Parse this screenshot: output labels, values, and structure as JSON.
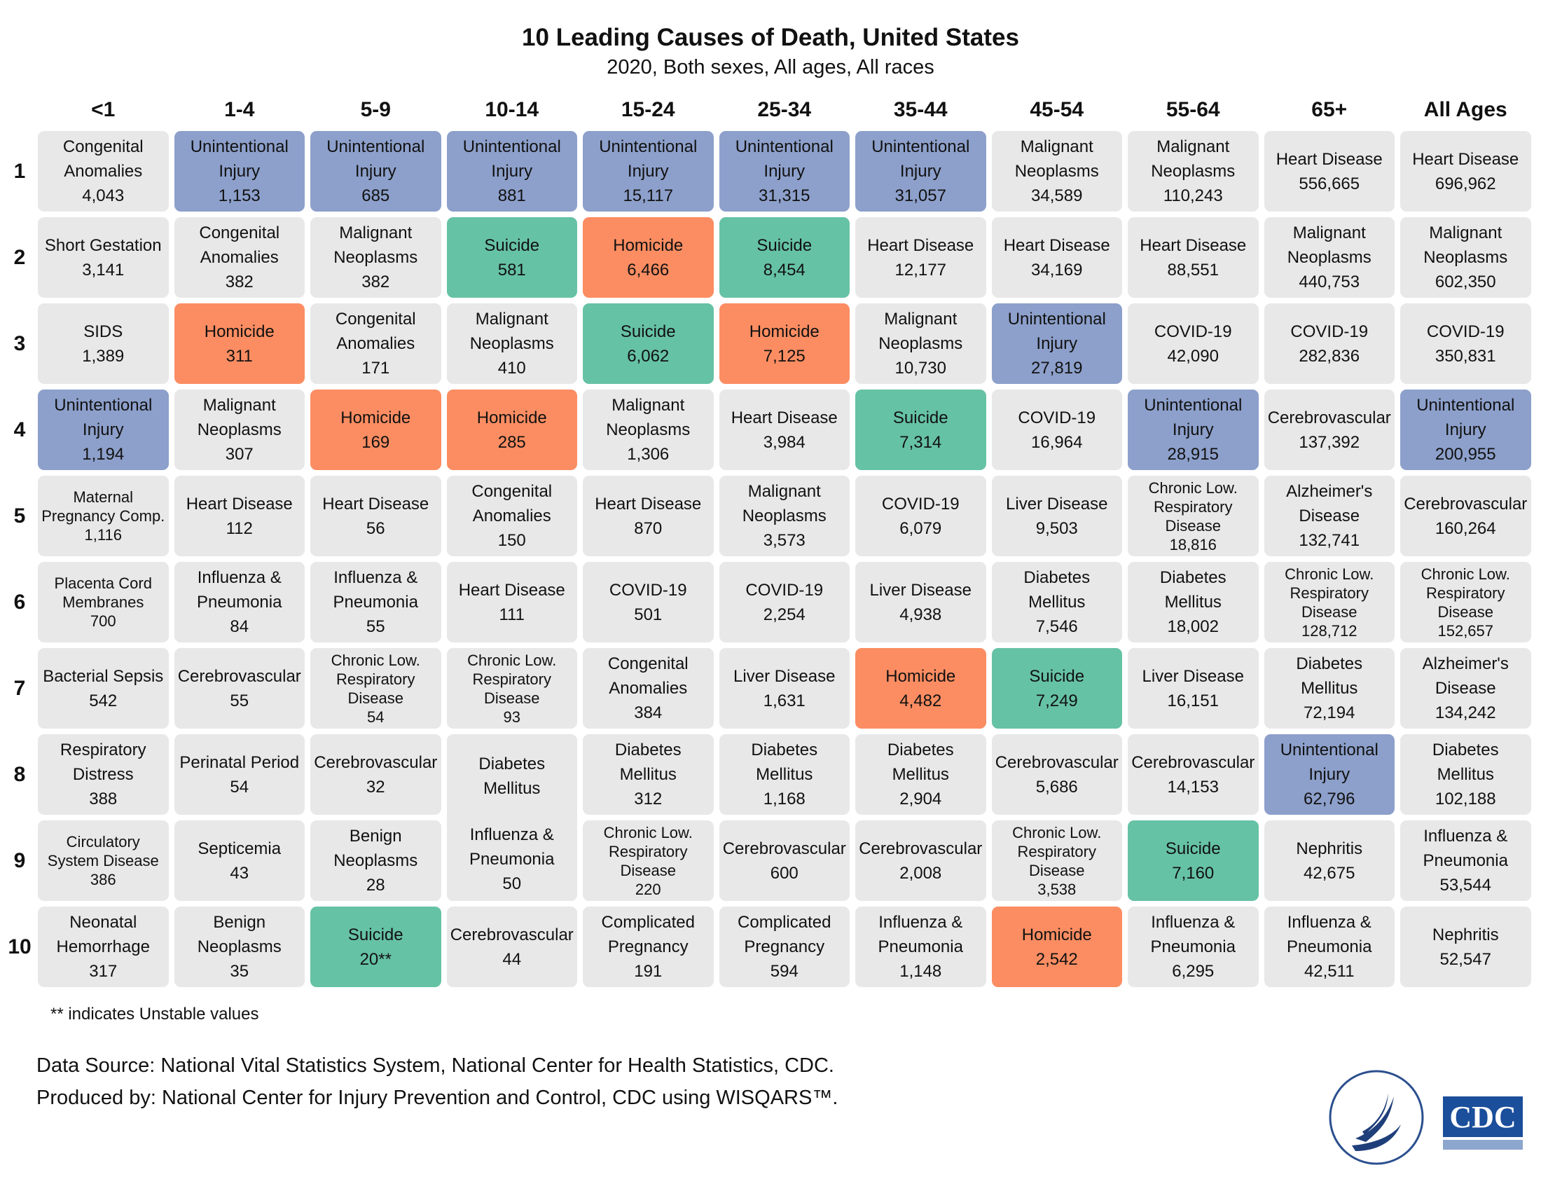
{
  "title": "10 Leading Causes of Death, United States",
  "subtitle": "2020, Both sexes, All ages, All races",
  "table": {
    "columns": [
      "<1",
      "1-4",
      "5-9",
      "10-14",
      "15-24",
      "25-34",
      "35-44",
      "45-54",
      "55-64",
      "65+",
      "All Ages"
    ],
    "rows": [
      {
        "rank": 1,
        "cells": [
          {
            "cause": "Congenital Anomalies",
            "count": "4,043"
          },
          {
            "cause": "Unintentional Injury",
            "count": "1,153",
            "color": "#8da0cb"
          },
          {
            "cause": "Unintentional Injury",
            "count": "685",
            "color": "#8da0cb"
          },
          {
            "cause": "Unintentional Injury",
            "count": "881",
            "color": "#8da0cb"
          },
          {
            "cause": "Unintentional Injury",
            "count": "15,117",
            "color": "#8da0cb"
          },
          {
            "cause": "Unintentional Injury",
            "count": "31,315",
            "color": "#8da0cb"
          },
          {
            "cause": "Unintentional Injury",
            "count": "31,057",
            "color": "#8da0cb"
          },
          {
            "cause": "Malignant Neoplasms",
            "count": "34,589"
          },
          {
            "cause": "Malignant Neoplasms",
            "count": "110,243"
          },
          {
            "cause": "Heart Disease",
            "count": "556,665"
          },
          {
            "cause": "Heart Disease",
            "count": "696,962"
          }
        ]
      },
      {
        "rank": 2,
        "cells": [
          {
            "cause": "Short Gestation",
            "count": "3,141"
          },
          {
            "cause": "Congenital Anomalies",
            "count": "382"
          },
          {
            "cause": "Malignant Neoplasms",
            "count": "382"
          },
          {
            "cause": "Suicide",
            "count": "581",
            "color": "#66c2a5"
          },
          {
            "cause": "Homicide",
            "count": "6,466",
            "color": "#fc8d62"
          },
          {
            "cause": "Suicide",
            "count": "8,454",
            "color": "#66c2a5"
          },
          {
            "cause": "Heart Disease",
            "count": "12,177"
          },
          {
            "cause": "Heart Disease",
            "count": "34,169"
          },
          {
            "cause": "Heart Disease",
            "count": "88,551"
          },
          {
            "cause": "Malignant Neoplasms",
            "count": "440,753"
          },
          {
            "cause": "Malignant Neoplasms",
            "count": "602,350"
          }
        ]
      },
      {
        "rank": 3,
        "cells": [
          {
            "cause": "SIDS",
            "count": "1,389"
          },
          {
            "cause": "Homicide",
            "count": "311",
            "color": "#fc8d62"
          },
          {
            "cause": "Congenital Anomalies",
            "count": "171"
          },
          {
            "cause": "Malignant Neoplasms",
            "count": "410"
          },
          {
            "cause": "Suicide",
            "count": "6,062",
            "color": "#66c2a5"
          },
          {
            "cause": "Homicide",
            "count": "7,125",
            "color": "#fc8d62"
          },
          {
            "cause": "Malignant Neoplasms",
            "count": "10,730"
          },
          {
            "cause": "Unintentional Injury",
            "count": "27,819",
            "color": "#8da0cb"
          },
          {
            "cause": "COVID-19",
            "count": "42,090"
          },
          {
            "cause": "COVID-19",
            "count": "282,836"
          },
          {
            "cause": "COVID-19",
            "count": "350,831"
          }
        ]
      },
      {
        "rank": 4,
        "cells": [
          {
            "cause": "Unintentional Injury",
            "count": "1,194",
            "color": "#8da0cb"
          },
          {
            "cause": "Malignant Neoplasms",
            "count": "307"
          },
          {
            "cause": "Homicide",
            "count": "169",
            "color": "#fc8d62"
          },
          {
            "cause": "Homicide",
            "count": "285",
            "color": "#fc8d62"
          },
          {
            "cause": "Malignant Neoplasms",
            "count": "1,306"
          },
          {
            "cause": "Heart Disease",
            "count": "3,984"
          },
          {
            "cause": "Suicide",
            "count": "7,314",
            "color": "#66c2a5"
          },
          {
            "cause": "COVID-19",
            "count": "16,964"
          },
          {
            "cause": "Unintentional Injury",
            "count": "28,915",
            "color": "#8da0cb"
          },
          {
            "cause": "Cerebrovascular",
            "count": "137,392"
          },
          {
            "cause": "Unintentional Injury",
            "count": "200,955",
            "color": "#8da0cb"
          }
        ]
      },
      {
        "rank": 5,
        "cells": [
          {
            "cause": "Maternal Pregnancy Comp.",
            "count": "1,116"
          },
          {
            "cause": "Heart Disease",
            "count": "112"
          },
          {
            "cause": "Heart Disease",
            "count": "56"
          },
          {
            "cause": "Congenital Anomalies",
            "count": "150"
          },
          {
            "cause": "Heart Disease",
            "count": "870"
          },
          {
            "cause": "Malignant Neoplasms",
            "count": "3,573"
          },
          {
            "cause": "COVID-19",
            "count": "6,079"
          },
          {
            "cause": "Liver Disease",
            "count": "9,503"
          },
          {
            "cause": "Chronic Low. Respiratory Disease",
            "count": "18,816"
          },
          {
            "cause": "Alzheimer's Disease",
            "count": "132,741"
          },
          {
            "cause": "Cerebrovascular",
            "count": "160,264"
          }
        ]
      },
      {
        "rank": 6,
        "cells": [
          {
            "cause": "Placenta Cord Membranes",
            "count": "700"
          },
          {
            "cause": "Influenza & Pneumonia",
            "count": "84"
          },
          {
            "cause": "Influenza & Pneumonia",
            "count": "55"
          },
          {
            "cause": "Heart Disease",
            "count": "111"
          },
          {
            "cause": "COVID-19",
            "count": "501"
          },
          {
            "cause": "COVID-19",
            "count": "2,254"
          },
          {
            "cause": "Liver Disease",
            "count": "4,938"
          },
          {
            "cause": "Diabetes Mellitus",
            "count": "7,546"
          },
          {
            "cause": "Diabetes Mellitus",
            "count": "18,002"
          },
          {
            "cause": "Chronic Low. Respiratory Disease",
            "count": "128,712"
          },
          {
            "cause": "Chronic Low. Respiratory Disease",
            "count": "152,657"
          }
        ]
      },
      {
        "rank": 7,
        "cells": [
          {
            "cause": "Bacterial Sepsis",
            "count": "542"
          },
          {
            "cause": "Cerebrovascular",
            "count": "55"
          },
          {
            "cause": "Chronic Low. Respiratory Disease",
            "count": "54"
          },
          {
            "cause": "Chronic Low. Respiratory Disease",
            "count": "93"
          },
          {
            "cause": "Congenital Anomalies",
            "count": "384"
          },
          {
            "cause": "Liver Disease",
            "count": "1,631"
          },
          {
            "cause": "Homicide",
            "count": "4,482",
            "color": "#fc8d62"
          },
          {
            "cause": "Suicide",
            "count": "7,249",
            "color": "#66c2a5"
          },
          {
            "cause": "Liver Disease",
            "count": "16,151"
          },
          {
            "cause": "Diabetes Mellitus",
            "count": "72,194"
          },
          {
            "cause": "Alzheimer's Disease",
            "count": "134,242"
          }
        ]
      },
      {
        "rank": 8,
        "cells": [
          {
            "cause": "Respiratory Distress",
            "count": "388"
          },
          {
            "cause": "Perinatal Period",
            "count": "54"
          },
          {
            "cause": "Cerebrovascular",
            "count": "32"
          },
          {
            "cause": "Diabetes Mellitus",
            "cause_2": "Influenza & Pneumonia",
            "count": "50",
            "rowspan": 2
          },
          {
            "cause": "Diabetes Mellitus",
            "count": "312"
          },
          {
            "cause": "Diabetes Mellitus",
            "count": "1,168"
          },
          {
            "cause": "Diabetes Mellitus",
            "count": "2,904"
          },
          {
            "cause": "Cerebrovascular",
            "count": "5,686"
          },
          {
            "cause": "Cerebrovascular",
            "count": "14,153"
          },
          {
            "cause": "Unintentional Injury",
            "count": "62,796",
            "color": "#8da0cb"
          },
          {
            "cause": "Diabetes Mellitus",
            "count": "102,188"
          }
        ]
      },
      {
        "rank": 9,
        "cells": [
          {
            "cause": "Circulatory System Disease",
            "count": "386"
          },
          {
            "cause": "Septicemia",
            "count": "43"
          },
          {
            "cause": "Benign Neoplasms",
            "count": "28"
          },
          {
            "cause": "Chronic Low. Respiratory Disease",
            "count": "220"
          },
          {
            "cause": "Cerebrovascular",
            "count": "600"
          },
          {
            "cause": "Cerebrovascular",
            "count": "2,008"
          },
          {
            "cause": "Chronic Low. Respiratory Disease",
            "count": "3,538"
          },
          {
            "cause": "Suicide",
            "count": "7,160",
            "color": "#66c2a5"
          },
          {
            "cause": "Nephritis",
            "count": "42,675"
          },
          {
            "cause": "Influenza & Pneumonia",
            "count": "53,544"
          }
        ]
      },
      {
        "rank": 10,
        "cells": [
          {
            "cause": "Neonatal Hemorrhage",
            "count": "317"
          },
          {
            "cause": "Benign Neoplasms",
            "count": "35"
          },
          {
            "cause": "Suicide",
            "count": "20**",
            "color": "#66c2a5"
          },
          {
            "cause": "Cerebrovascular",
            "count": "44"
          },
          {
            "cause": "Complicated Pregnancy",
            "count": "191"
          },
          {
            "cause": "Complicated Pregnancy",
            "count": "594"
          },
          {
            "cause": "Influenza & Pneumonia",
            "count": "1,148"
          },
          {
            "cause": "Homicide",
            "count": "2,542",
            "color": "#fc8d62"
          },
          {
            "cause": "Influenza & Pneumonia",
            "count": "6,295"
          },
          {
            "cause": "Influenza & Pneumonia",
            "count": "42,511"
          },
          {
            "cause": "Nephritis",
            "count": "52,547"
          }
        ]
      }
    ]
  },
  "footnote": "** indicates Unstable values",
  "source": [
    "Data Source: National Vital Statistics System, National Center for Health Statistics, CDC.",
    "Produced by: National Center for Injury Prevention and Control, CDC using WISQARS™."
  ],
  "logo_text": "CDC"
}
